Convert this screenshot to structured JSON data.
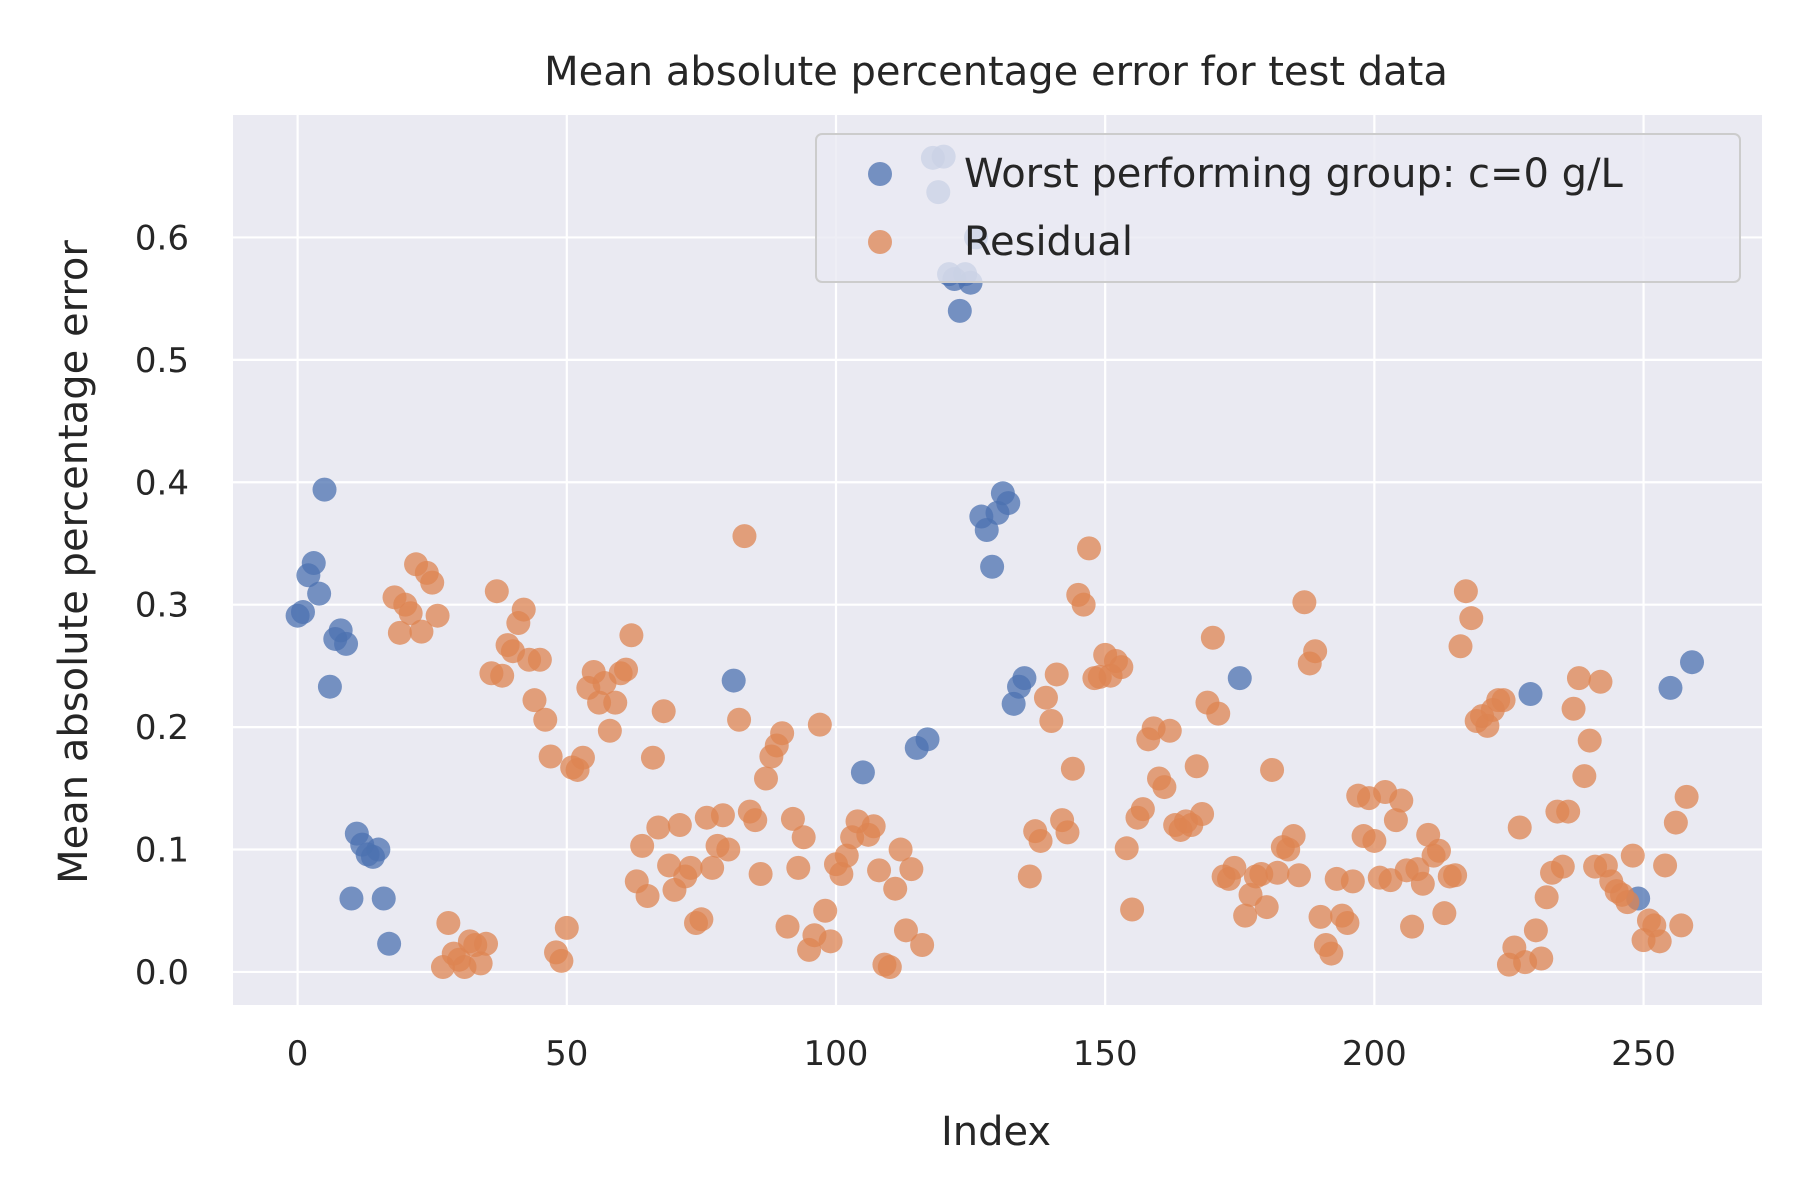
{
  "chart_data": {
    "type": "scatter",
    "title": "Mean absolute percentage error for test data",
    "xlabel": "Index",
    "ylabel": "Mean absolute percentage error",
    "xlim": [
      -12,
      272
    ],
    "ylim": [
      -0.027,
      0.7
    ],
    "xticks": [
      0,
      50,
      100,
      150,
      200,
      250
    ],
    "yticks": [
      0.0,
      0.1,
      0.2,
      0.3,
      0.4,
      0.5,
      0.6
    ],
    "ytick_labels": [
      "0.0",
      "0.1",
      "0.2",
      "0.3",
      "0.4",
      "0.5",
      "0.6"
    ],
    "grid": true,
    "legend_position": "top-right",
    "background": "#eaeaf2",
    "series": [
      {
        "name": "Worst performing group: c=0 g/L",
        "color": "#4c72b0",
        "points": [
          [
            0,
            0.291
          ],
          [
            1,
            0.294
          ],
          [
            2,
            0.324
          ],
          [
            3,
            0.334
          ],
          [
            4,
            0.309
          ],
          [
            5,
            0.394
          ],
          [
            6,
            0.233
          ],
          [
            7,
            0.272
          ],
          [
            8,
            0.279
          ],
          [
            9,
            0.268
          ],
          [
            10,
            0.06
          ],
          [
            11,
            0.113
          ],
          [
            12,
            0.104
          ],
          [
            13,
            0.096
          ],
          [
            14,
            0.094
          ],
          [
            15,
            0.1
          ],
          [
            16,
            0.06
          ],
          [
            17,
            0.023
          ],
          [
            81,
            0.238
          ],
          [
            105,
            0.163
          ],
          [
            115,
            0.183
          ],
          [
            117,
            0.19
          ],
          [
            118,
            0.665
          ],
          [
            119,
            0.637
          ],
          [
            120,
            0.666
          ],
          [
            121,
            0.57
          ],
          [
            122,
            0.566
          ],
          [
            123,
            0.54
          ],
          [
            124,
            0.57
          ],
          [
            125,
            0.563
          ],
          [
            126,
            0.6
          ],
          [
            127,
            0.372
          ],
          [
            128,
            0.361
          ],
          [
            129,
            0.331
          ],
          [
            130,
            0.375
          ],
          [
            131,
            0.391
          ],
          [
            132,
            0.383
          ],
          [
            133,
            0.219
          ],
          [
            134,
            0.233
          ],
          [
            135,
            0.24
          ],
          [
            175,
            0.24
          ],
          [
            229,
            0.227
          ],
          [
            249,
            0.06
          ],
          [
            255,
            0.232
          ],
          [
            259,
            0.253
          ]
        ]
      },
      {
        "name": "Residual",
        "color": "#dd8452",
        "points": [
          [
            18,
            0.306
          ],
          [
            19,
            0.277
          ],
          [
            20,
            0.3
          ],
          [
            21,
            0.293
          ],
          [
            22,
            0.333
          ],
          [
            23,
            0.278
          ],
          [
            24,
            0.326
          ],
          [
            25,
            0.318
          ],
          [
            26,
            0.291
          ],
          [
            27,
            0.004
          ],
          [
            28,
            0.04
          ],
          [
            29,
            0.015
          ],
          [
            30,
            0.01
          ],
          [
            31,
            0.004
          ],
          [
            32,
            0.025
          ],
          [
            33,
            0.022
          ],
          [
            34,
            0.007
          ],
          [
            35,
            0.023
          ],
          [
            36,
            0.244
          ],
          [
            37,
            0.311
          ],
          [
            38,
            0.242
          ],
          [
            39,
            0.267
          ],
          [
            40,
            0.262
          ],
          [
            41,
            0.285
          ],
          [
            42,
            0.296
          ],
          [
            43,
            0.255
          ],
          [
            44,
            0.222
          ],
          [
            45,
            0.255
          ],
          [
            46,
            0.206
          ],
          [
            47,
            0.176
          ],
          [
            48,
            0.016
          ],
          [
            49,
            0.009
          ],
          [
            50,
            0.036
          ],
          [
            51,
            0.167
          ],
          [
            52,
            0.165
          ],
          [
            53,
            0.175
          ],
          [
            54,
            0.232
          ],
          [
            55,
            0.245
          ],
          [
            56,
            0.22
          ],
          [
            57,
            0.236
          ],
          [
            58,
            0.197
          ],
          [
            59,
            0.22
          ],
          [
            60,
            0.244
          ],
          [
            61,
            0.247
          ],
          [
            62,
            0.275
          ],
          [
            63,
            0.074
          ],
          [
            64,
            0.103
          ],
          [
            65,
            0.062
          ],
          [
            66,
            0.175
          ],
          [
            67,
            0.118
          ],
          [
            68,
            0.213
          ],
          [
            69,
            0.087
          ],
          [
            70,
            0.067
          ],
          [
            71,
            0.12
          ],
          [
            72,
            0.078
          ],
          [
            73,
            0.085
          ],
          [
            74,
            0.04
          ],
          [
            75,
            0.043
          ],
          [
            76,
            0.126
          ],
          [
            77,
            0.085
          ],
          [
            78,
            0.103
          ],
          [
            79,
            0.128
          ],
          [
            80,
            0.1
          ],
          [
            82,
            0.206
          ],
          [
            83,
            0.356
          ],
          [
            84,
            0.131
          ],
          [
            85,
            0.124
          ],
          [
            86,
            0.08
          ],
          [
            87,
            0.158
          ],
          [
            88,
            0.176
          ],
          [
            89,
            0.185
          ],
          [
            90,
            0.195
          ],
          [
            91,
            0.037
          ],
          [
            92,
            0.125
          ],
          [
            93,
            0.085
          ],
          [
            94,
            0.11
          ],
          [
            95,
            0.018
          ],
          [
            96,
            0.03
          ],
          [
            97,
            0.202
          ],
          [
            98,
            0.05
          ],
          [
            99,
            0.025
          ],
          [
            100,
            0.088
          ],
          [
            101,
            0.08
          ],
          [
            102,
            0.095
          ],
          [
            103,
            0.11
          ],
          [
            104,
            0.123
          ],
          [
            106,
            0.112
          ],
          [
            107,
            0.119
          ],
          [
            108,
            0.083
          ],
          [
            109,
            0.006
          ],
          [
            110,
            0.004
          ],
          [
            111,
            0.068
          ],
          [
            112,
            0.1
          ],
          [
            113,
            0.034
          ],
          [
            114,
            0.084
          ],
          [
            116,
            0.022
          ],
          [
            136,
            0.078
          ],
          [
            137,
            0.115
          ],
          [
            138,
            0.107
          ],
          [
            139,
            0.224
          ],
          [
            140,
            0.205
          ],
          [
            141,
            0.243
          ],
          [
            142,
            0.124
          ],
          [
            143,
            0.114
          ],
          [
            144,
            0.166
          ],
          [
            145,
            0.308
          ],
          [
            146,
            0.3
          ],
          [
            147,
            0.346
          ],
          [
            148,
            0.24
          ],
          [
            149,
            0.241
          ],
          [
            150,
            0.259
          ],
          [
            151,
            0.242
          ],
          [
            152,
            0.254
          ],
          [
            153,
            0.249
          ],
          [
            154,
            0.101
          ],
          [
            155,
            0.051
          ],
          [
            156,
            0.126
          ],
          [
            157,
            0.133
          ],
          [
            158,
            0.19
          ],
          [
            159,
            0.199
          ],
          [
            160,
            0.158
          ],
          [
            161,
            0.151
          ],
          [
            162,
            0.197
          ],
          [
            163,
            0.12
          ],
          [
            164,
            0.116
          ],
          [
            165,
            0.123
          ],
          [
            166,
            0.12
          ],
          [
            167,
            0.168
          ],
          [
            168,
            0.129
          ],
          [
            169,
            0.22
          ],
          [
            170,
            0.273
          ],
          [
            171,
            0.211
          ],
          [
            172,
            0.078
          ],
          [
            173,
            0.076
          ],
          [
            174,
            0.085
          ],
          [
            176,
            0.046
          ],
          [
            177,
            0.063
          ],
          [
            178,
            0.078
          ],
          [
            179,
            0.08
          ],
          [
            180,
            0.053
          ],
          [
            181,
            0.165
          ],
          [
            182,
            0.081
          ],
          [
            183,
            0.102
          ],
          [
            184,
            0.1
          ],
          [
            185,
            0.111
          ],
          [
            186,
            0.079
          ],
          [
            187,
            0.302
          ],
          [
            188,
            0.252
          ],
          [
            189,
            0.262
          ],
          [
            190,
            0.045
          ],
          [
            191,
            0.022
          ],
          [
            192,
            0.015
          ],
          [
            193,
            0.076
          ],
          [
            194,
            0.046
          ],
          [
            195,
            0.04
          ],
          [
            196,
            0.074
          ],
          [
            197,
            0.144
          ],
          [
            198,
            0.111
          ],
          [
            199,
            0.142
          ],
          [
            200,
            0.107
          ],
          [
            201,
            0.077
          ],
          [
            202,
            0.147
          ],
          [
            203,
            0.075
          ],
          [
            204,
            0.124
          ],
          [
            205,
            0.14
          ],
          [
            206,
            0.083
          ],
          [
            207,
            0.037
          ],
          [
            208,
            0.084
          ],
          [
            209,
            0.072
          ],
          [
            210,
            0.112
          ],
          [
            211,
            0.095
          ],
          [
            212,
            0.099
          ],
          [
            213,
            0.048
          ],
          [
            214,
            0.078
          ],
          [
            215,
            0.079
          ],
          [
            216,
            0.266
          ],
          [
            217,
            0.311
          ],
          [
            218,
            0.289
          ],
          [
            219,
            0.205
          ],
          [
            220,
            0.209
          ],
          [
            221,
            0.201
          ],
          [
            222,
            0.214
          ],
          [
            223,
            0.222
          ],
          [
            224,
            0.222
          ],
          [
            225,
            0.006
          ],
          [
            226,
            0.02
          ],
          [
            227,
            0.118
          ],
          [
            228,
            0.008
          ],
          [
            230,
            0.034
          ],
          [
            231,
            0.011
          ],
          [
            232,
            0.061
          ],
          [
            233,
            0.081
          ],
          [
            234,
            0.131
          ],
          [
            235,
            0.086
          ],
          [
            236,
            0.131
          ],
          [
            237,
            0.215
          ],
          [
            238,
            0.24
          ],
          [
            239,
            0.16
          ],
          [
            240,
            0.189
          ],
          [
            241,
            0.086
          ],
          [
            242,
            0.237
          ],
          [
            243,
            0.087
          ],
          [
            244,
            0.074
          ],
          [
            245,
            0.066
          ],
          [
            246,
            0.063
          ],
          [
            247,
            0.057
          ],
          [
            248,
            0.095
          ],
          [
            250,
            0.026
          ],
          [
            251,
            0.042
          ],
          [
            252,
            0.038
          ],
          [
            253,
            0.025
          ],
          [
            254,
            0.087
          ],
          [
            256,
            0.122
          ],
          [
            257,
            0.038
          ],
          [
            258,
            0.143
          ]
        ]
      }
    ]
  }
}
